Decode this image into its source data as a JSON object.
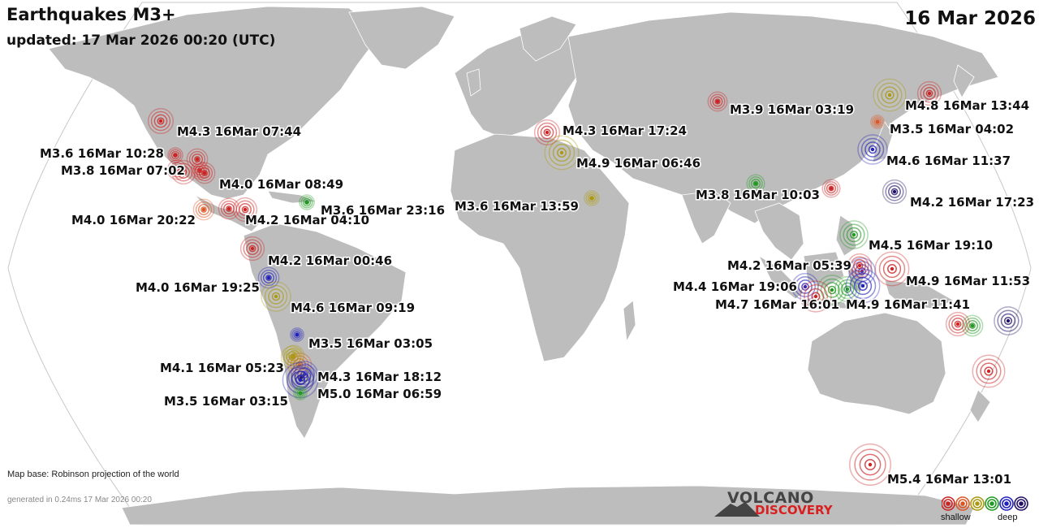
{
  "header": {
    "title": "Earthquakes M3+",
    "updated": "updated: 17 Mar 2026 00:20 (UTC)",
    "date": "16 Mar 2026"
  },
  "footer": {
    "map_base": "Map base: Robinson projection of the world",
    "generated": "generated in 0.24ms 17 Mar 2026 00:20"
  },
  "logo": {
    "line1": "VOLCANO",
    "line2": "DISCOVERY"
  },
  "legend": {
    "shallow_label": "shallow",
    "deep_label": "deep",
    "depth_colors": [
      "#cc2222",
      "#dd5522",
      "#aa9911",
      "#229922",
      "#2222bb",
      "#221166"
    ]
  },
  "colors": {
    "ocean": "#ffffff",
    "land": "#bdbdbd",
    "border": "#ffffff",
    "text": "#111111"
  },
  "quakes": [
    {
      "label": "M4.3 16Mar 07:44",
      "mag": 4.3,
      "color": "#cc2222"
    },
    {
      "label": "M3.6 16Mar 10:28",
      "mag": 3.6,
      "color": "#cc2222"
    },
    {
      "label": "M3.8 16Mar 07:02",
      "mag": 3.8,
      "color": "#cc2222"
    },
    {
      "label": "M4.0 16Mar 08:49",
      "mag": 4.0,
      "color": "#cc2222"
    },
    {
      "label": "M4.0 16Mar 20:22",
      "mag": 4.0,
      "color": "#dd5522"
    },
    {
      "label": "M4.2 16Mar 04:10",
      "mag": 4.2,
      "color": "#cc2222"
    },
    {
      "label": "M3.6 16Mar 23:16",
      "mag": 3.6,
      "color": "#229922"
    },
    {
      "label": "M4.2 16Mar 00:46",
      "mag": 4.2,
      "color": "#cc2222"
    },
    {
      "label": "M4.0 16Mar 19:25",
      "mag": 4.0,
      "color": "#2222bb"
    },
    {
      "label": "M4.6 16Mar 09:19",
      "mag": 4.6,
      "color": "#aa9911"
    },
    {
      "label": "M3.5 16Mar 03:05",
      "mag": 3.5,
      "color": "#2222bb"
    },
    {
      "label": "M4.1 16Mar 05:23",
      "mag": 4.1,
      "color": "#aa9911"
    },
    {
      "label": "M4.3 16Mar 18:12",
      "mag": 4.3,
      "color": "#221166"
    },
    {
      "label": "M5.0 16Mar 06:59",
      "mag": 5.0,
      "color": "#2222bb"
    },
    {
      "label": "M3.5 16Mar 03:15",
      "mag": 3.5,
      "color": "#229922"
    },
    {
      "label": "M4.3 16Mar 17:24",
      "mag": 4.3,
      "color": "#cc2222"
    },
    {
      "label": "M4.9 16Mar 06:46",
      "mag": 4.9,
      "color": "#aa9911"
    },
    {
      "label": "M3.6 16Mar 13:59",
      "mag": 3.6,
      "color": "#aa9911"
    },
    {
      "label": "M3.9 16Mar 03:19",
      "mag": 3.9,
      "color": "#cc2222"
    },
    {
      "label": "M3.8 16Mar 10:03",
      "mag": 3.8,
      "color": "#229922"
    },
    {
      "label": "M4.8 16Mar 13:44",
      "mag": 4.8,
      "color": "#aa9911"
    },
    {
      "label": "M3.5 16Mar 04:02",
      "mag": 3.5,
      "color": "#dd5522"
    },
    {
      "label": "M4.6 16Mar 11:37",
      "mag": 4.6,
      "color": "#2222bb"
    },
    {
      "label": "M4.2 16Mar 17:23",
      "mag": 4.2,
      "color": "#221166"
    },
    {
      "label": "M4.5 16Mar 19:10",
      "mag": 4.5,
      "color": "#229922"
    },
    {
      "label": "M4.2 16Mar 05:39",
      "mag": 4.2,
      "color": "#cc2222"
    },
    {
      "label": "M4.9 16Mar 11:53",
      "mag": 4.9,
      "color": "#cc2222"
    },
    {
      "label": "M4.4 16Mar 19:06",
      "mag": 4.4,
      "color": "#2222bb"
    },
    {
      "label": "M4.7 16Mar 16:01",
      "mag": 4.7,
      "color": "#cc2222"
    },
    {
      "label": "M4.9 16Mar 11:41",
      "mag": 4.9,
      "color": "#2222bb"
    },
    {
      "label": "M5.4 16Mar 13:01",
      "mag": 5.4,
      "color": "#cc2222"
    }
  ],
  "extra_markers": [
    {
      "mag": 4.0,
      "color": "#cc2222"
    },
    {
      "mag": 4.2,
      "color": "#cc2222"
    },
    {
      "mag": 4.0,
      "color": "#cc2222"
    },
    {
      "mag": 3.9,
      "color": "#cc2222"
    },
    {
      "mag": 4.6,
      "color": "#229922"
    },
    {
      "mag": 4.3,
      "color": "#229922"
    },
    {
      "mag": 3.8,
      "color": "#cc2222"
    },
    {
      "mag": 4.0,
      "color": "#229922"
    },
    {
      "mag": 4.5,
      "color": "#221166"
    },
    {
      "mag": 4.2,
      "color": "#cc2222"
    },
    {
      "mag": 4.8,
      "color": "#cc2222"
    },
    {
      "mag": 4.2,
      "color": "#cc2222"
    },
    {
      "mag": 4.4,
      "color": "#2222bb"
    },
    {
      "mag": 4.0,
      "color": "#aa9911"
    },
    {
      "mag": 4.2,
      "color": "#dd5522"
    },
    {
      "mag": 4.4,
      "color": "#2222bb"
    }
  ]
}
